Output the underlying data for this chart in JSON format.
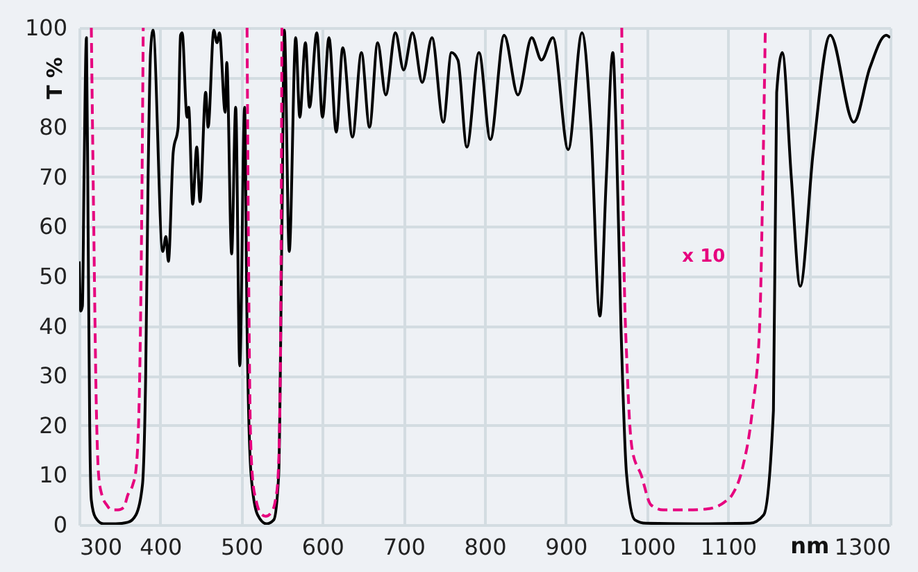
{
  "chart_data": {
    "type": "line",
    "xlabel": "nm",
    "ylabel": "T %",
    "xlim": [
      300,
      1300
    ],
    "ylim": [
      0,
      100
    ],
    "xticks": [
      300,
      400,
      500,
      600,
      700,
      800,
      900,
      1000,
      1100,
      {
        "value": 1200,
        "label": null
      },
      1300
    ],
    "yticks": [
      0,
      10,
      20,
      30,
      40,
      50,
      60,
      70,
      80,
      {
        "value": 90,
        "label": null
      },
      100
    ],
    "grid": true,
    "annotations": [
      "x 10"
    ],
    "series": [
      {
        "color": "#000000",
        "line_style": "solid",
        "x": [
          300,
          302,
          304,
          306,
          309,
          311,
          313,
          315,
          320,
          330,
          345,
          360,
          370,
          378,
          382,
          385,
          388,
          391,
          403,
          407,
          410,
          416,
          422,
          425,
          427,
          433,
          435,
          440,
          445,
          449,
          456,
          459,
          466,
          470,
          473,
          480,
          482,
          488,
          493,
          498,
          504,
          507,
          512,
          520,
          531,
          540,
          546,
          550,
          553,
          559,
          567,
          572,
          579,
          584,
          593,
          600,
          608,
          617,
          625,
          637,
          648,
          658,
          668,
          678,
          690,
          700,
          711,
          723,
          735,
          749,
          759,
          767,
          778,
          793,
          807,
          824,
          841,
          858,
          870,
          884,
          903,
          920,
          931,
          942,
          950,
          958,
          962,
          968,
          975,
          985,
          999,
          1060,
          1127,
          1144,
          1156,
          1160,
          1167,
          1178,
          1189,
          1205,
          1226,
          1255,
          1275,
          1295,
          1300
        ],
        "values": [
          53,
          43,
          44,
          70,
          98,
          60,
          20,
          5,
          1.5,
          0.2,
          0.2,
          0.5,
          2,
          8,
          30,
          70,
          95,
          99.5,
          55,
          58,
          53,
          75,
          80,
          98.5,
          99,
          82,
          84,
          64.5,
          76,
          65,
          87,
          80,
          99.5,
          97,
          99,
          83,
          93,
          54.5,
          84,
          32,
          84,
          40,
          10,
          2,
          0.2,
          1,
          10,
          60,
          99.5,
          55,
          98,
          82,
          97,
          84,
          99,
          82,
          98,
          79,
          96,
          78,
          95,
          80,
          97,
          86.5,
          99,
          91.5,
          99,
          89,
          98,
          81,
          95,
          93.5,
          76,
          95,
          77.5,
          98.5,
          86.5,
          98,
          93.5,
          98,
          75.5,
          99,
          80,
          42,
          70,
          95,
          80,
          40,
          10,
          1,
          0.3,
          0.2,
          0.3,
          2,
          23,
          87,
          95,
          70,
          48,
          75,
          98.5,
          81,
          92,
          98.5,
          98
        ]
      },
      {
        "color": "#e6007e",
        "line_style": "dashed",
        "x": [
          315,
          318,
          321,
          324,
          328,
          334,
          340,
          348,
          355,
          360,
          366,
          370,
          374,
          377,
          379,
          400,
          507,
          509,
          511,
          514,
          518,
          523,
          530,
          537,
          542,
          545,
          548,
          550,
          700,
          969,
          971,
          976,
          982,
          993,
          1005,
          1020,
          1050,
          1075,
          1095,
          1105,
          1118,
          1130,
          1139,
          1143,
          1146
        ],
        "values": [
          100,
          60,
          25,
          10,
          6,
          4,
          3,
          3,
          3.5,
          6,
          8,
          11,
          25,
          60,
          100,
          null,
          100,
          50,
          20,
          9,
          5,
          2.5,
          1.7,
          2.5,
          5,
          9,
          30,
          100,
          null,
          100,
          60,
          30,
          15,
          10,
          4,
          3,
          3,
          3.2,
          4.5,
          6,
          11.5,
          23,
          40,
          70,
          100
        ]
      }
    ]
  }
}
